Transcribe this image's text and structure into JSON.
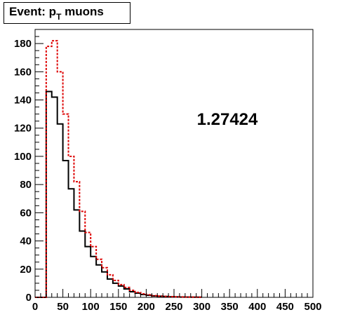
{
  "chart_data": {
    "type": "histogram",
    "title": "Event: p_T muons",
    "title_parts": {
      "pre": "Event: p",
      "sub": "T",
      "post": " muons"
    },
    "annotation": "1.27424",
    "xlim": [
      0,
      500
    ],
    "ylim": [
      0,
      190
    ],
    "xticks": [
      0,
      50,
      100,
      150,
      200,
      250,
      300,
      350,
      400,
      450,
      500
    ],
    "yticks": [
      0,
      20,
      40,
      60,
      80,
      100,
      120,
      140,
      160,
      180
    ],
    "bin_width": 10,
    "x": [
      5,
      15,
      25,
      35,
      45,
      55,
      65,
      75,
      85,
      95,
      105,
      115,
      125,
      135,
      145,
      155,
      165,
      175,
      185,
      195,
      205,
      215,
      225,
      235,
      245,
      255,
      265,
      275,
      285,
      295
    ],
    "grid": false,
    "series": [
      {
        "color": "#000000",
        "style": "solid",
        "values": [
          0,
          0,
          146,
          142,
          123,
          97,
          77,
          62,
          47,
          36,
          29,
          23,
          18,
          13,
          10,
          8,
          6,
          4,
          3,
          2,
          1.5,
          1,
          0.8,
          0.6,
          0.4,
          0.3,
          0.2,
          0.2,
          0.1,
          0.1
        ]
      },
      {
        "color": "#dd0000",
        "style": "dashed",
        "values": [
          0,
          0,
          178,
          182,
          160,
          130,
          100,
          82,
          61,
          46,
          36,
          27,
          21,
          16,
          12,
          9,
          7,
          5,
          3.5,
          2.5,
          1.8,
          1.2,
          0.9,
          0.7,
          0.5,
          0.4,
          0.3,
          0.2,
          0.2,
          0.1
        ]
      }
    ]
  }
}
